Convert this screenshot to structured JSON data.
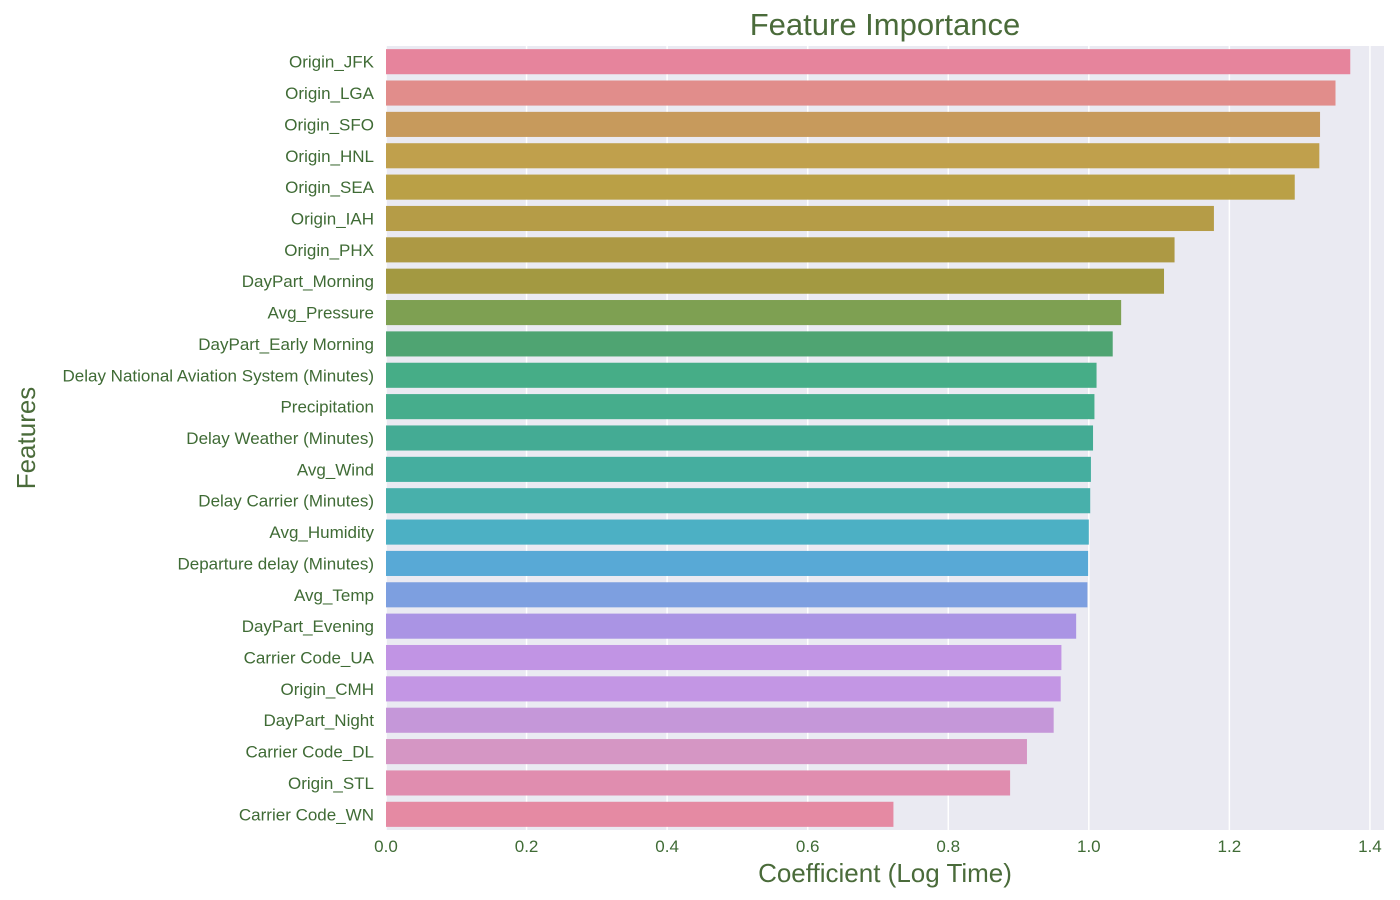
{
  "chart_data": {
    "type": "bar",
    "orientation": "horizontal",
    "title": "Feature Importance",
    "xlabel": "Coefficient (Log Time)",
    "ylabel": "Features",
    "xlim": [
      0,
      1.42
    ],
    "xticks": [
      0.0,
      0.2,
      0.4,
      0.6,
      0.8,
      1.0,
      1.2,
      1.4
    ],
    "xtick_labels": [
      "0.0",
      "0.2",
      "0.4",
      "0.6",
      "0.8",
      "1.0",
      "1.2",
      "1.4"
    ],
    "grid": true,
    "categories": [
      "Origin_JFK",
      "Origin_LGA",
      "Origin_SFO",
      "Origin_HNL",
      "Origin_SEA",
      "Origin_IAH",
      "Origin_PHX",
      "DayPart_Morning",
      "Avg_Pressure",
      "DayPart_Early Morning",
      "Delay National Aviation System (Minutes)",
      "Precipitation",
      "Delay Weather (Minutes)",
      "Avg_Wind",
      "Delay Carrier (Minutes)",
      "Avg_Humidity",
      "Departure delay (Minutes)",
      "Avg_Temp",
      "DayPart_Evening",
      "Carrier Code_UA",
      "Origin_CMH",
      "DayPart_Night",
      "Carrier Code_DL",
      "Origin_STL",
      "Carrier Code_WN"
    ],
    "values": [
      1.372,
      1.351,
      1.329,
      1.328,
      1.293,
      1.178,
      1.122,
      1.107,
      1.046,
      1.034,
      1.011,
      1.008,
      1.006,
      1.003,
      1.002,
      1.0,
      0.999,
      0.998,
      0.982,
      0.961,
      0.96,
      0.95,
      0.912,
      0.888,
      0.722
    ],
    "colors": [
      "#e6849c",
      "#e18d8b",
      "#c79a5c",
      "#c0a04c",
      "#baa046",
      "#b59c47",
      "#ad9944",
      "#a39941",
      "#7ea052",
      "#4fa472",
      "#46ad87",
      "#46ad8c",
      "#44ab94",
      "#45ae9f",
      "#48b0ab",
      "#4cb0c4",
      "#58a9d6",
      "#7d9fe0",
      "#aa94e4",
      "#c194e4",
      "#c396e4",
      "#c597d9",
      "#d596c4",
      "#e08daf",
      "#e58aa3"
    ],
    "background": "#eaeaf2"
  }
}
